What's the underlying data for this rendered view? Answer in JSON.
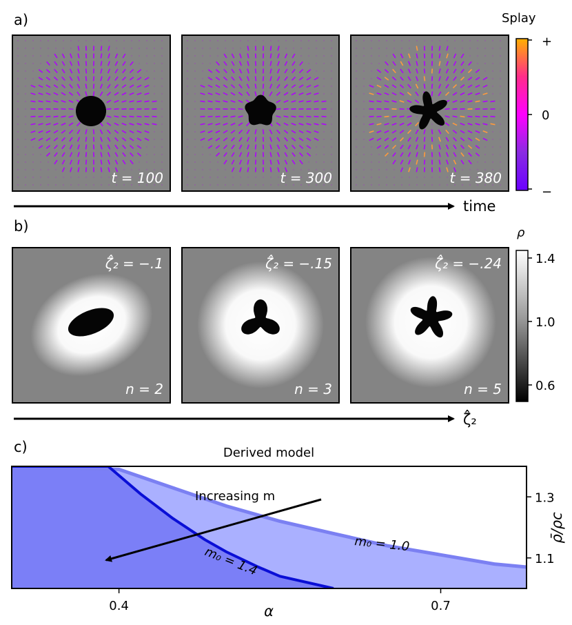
{
  "panel_a": {
    "label": "a)",
    "panels": [
      {
        "time_label": "t = 100",
        "shape": "circle",
        "arms": 0
      },
      {
        "time_label": "t = 300",
        "shape": "flower",
        "arms": 5
      },
      {
        "time_label": "t = 380",
        "shape": "flower",
        "arms": 5
      }
    ],
    "arrow_label": "time",
    "colorbar": {
      "title": "Splay",
      "ticks": [
        "+",
        "0",
        "−"
      ],
      "colors": [
        "#ffb000",
        "#ff2d8a",
        "#ff00ff",
        "#8a2be2",
        "#6a00ff"
      ]
    }
  },
  "panel_b": {
    "label": "b)",
    "panels": [
      {
        "zeta_label": "ζ̂₂ = −.1",
        "n_label": "n = 2",
        "arms": 2
      },
      {
        "zeta_label": "ζ̂₂ = −.15",
        "n_label": "n = 3",
        "arms": 3
      },
      {
        "zeta_label": "ζ̂₂ = −.24",
        "n_label": "n = 5",
        "arms": 5
      }
    ],
    "arrow_label": "ζ̂₂",
    "colorbar": {
      "title": "ρ",
      "ticks": [
        "1.4",
        "1.0",
        "0.6"
      ],
      "range": [
        0.5,
        1.45
      ]
    }
  },
  "panel_c_label": "c)",
  "chart_data": {
    "type": "area",
    "title": "Derived model",
    "xlabel": "α",
    "ylabel": "ρ̄/ρc",
    "xlim": [
      0.3,
      0.78
    ],
    "ylim": [
      1.0,
      1.4
    ],
    "x_ticks": [
      0.4,
      0.7
    ],
    "x_tick_labels": [
      "0.4",
      "0.7"
    ],
    "y_ticks": [
      1.1,
      1.3
    ],
    "y_tick_labels": [
      "1.1",
      "1.3"
    ],
    "series": [
      {
        "name": "m₀ = 1.0",
        "x": [
          0.3,
          0.4,
          0.45,
          0.5,
          0.55,
          0.6,
          0.65,
          0.7,
          0.75,
          0.78
        ],
        "y": [
          1.4,
          1.39,
          1.33,
          1.27,
          1.22,
          1.18,
          1.14,
          1.11,
          1.08,
          1.07
        ],
        "fill": "#aab0ff",
        "line": "#7b80f2"
      },
      {
        "name": "m₀ = 1.4",
        "x": [
          0.3,
          0.39,
          0.42,
          0.45,
          0.48,
          0.5,
          0.53,
          0.55,
          0.6
        ],
        "y": [
          1.4,
          1.4,
          1.31,
          1.23,
          1.16,
          1.12,
          1.07,
          1.04,
          1.0
        ],
        "fill": "#7b7ff7",
        "line": "#0a0fd6"
      }
    ],
    "annotation": "Increasing m"
  }
}
